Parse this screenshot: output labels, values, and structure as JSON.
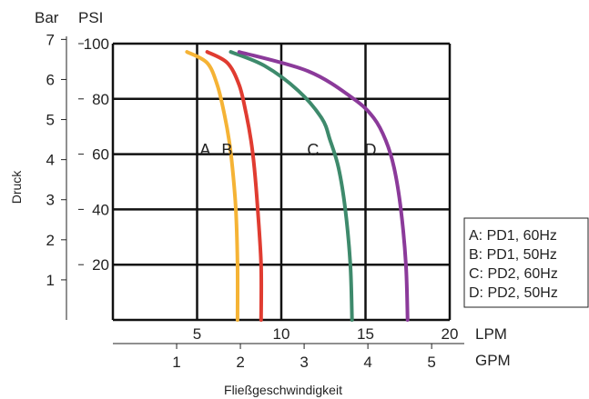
{
  "chart_data": {
    "type": "line",
    "title": "",
    "ylabel": "Druck",
    "xlabel": "Fließgeschwindigkeit",
    "units": {
      "bar": "Bar",
      "psi": "PSI",
      "lpm": "LPM",
      "gpm": "GPM"
    },
    "lpm_ticks": [
      "5",
      "10",
      "15",
      "20"
    ],
    "gpm_ticks": [
      "1",
      "2",
      "3",
      "4",
      "5"
    ],
    "psi_ticks": [
      "20",
      "40",
      "60",
      "80",
      "100"
    ],
    "bar_ticks": [
      "1",
      "2",
      "3",
      "4",
      "5",
      "6",
      "7"
    ],
    "xlim_lpm": [
      0,
      20
    ],
    "ylim_psi": [
      0,
      100
    ],
    "legend_position": "right",
    "series": [
      {
        "name": "A: PD1, 60Hz",
        "label": "A",
        "color": "#f5b335",
        "x": [
          7.4,
          7.4,
          7.3,
          7.1,
          6.9,
          6.6,
          6.2,
          5.6,
          4.4
        ],
        "y": [
          0,
          20,
          40,
          55,
          65,
          75,
          85,
          93,
          97
        ]
      },
      {
        "name": "B: PD1, 50Hz",
        "label": "B",
        "color": "#e03c31",
        "x": [
          8.8,
          8.8,
          8.6,
          8.4,
          8.2,
          7.9,
          7.5,
          6.8,
          5.6
        ],
        "y": [
          0,
          20,
          40,
          55,
          65,
          75,
          85,
          93,
          97
        ]
      },
      {
        "name": "C: PD2, 60Hz",
        "label": "C",
        "color": "#3e8a6c",
        "x": [
          14.2,
          14.1,
          13.8,
          13.4,
          12.9,
          12.4,
          11.0,
          9.0,
          7.0
        ],
        "y": [
          0,
          20,
          40,
          55,
          65,
          73,
          83,
          92,
          97
        ]
      },
      {
        "name": "D: PD2, 50Hz",
        "label": "D",
        "color": "#8b3a9a",
        "x": [
          17.5,
          17.4,
          17.1,
          16.7,
          16.2,
          15.5,
          14.3,
          11.6,
          7.5
        ],
        "y": [
          0,
          20,
          40,
          55,
          65,
          73,
          80,
          90,
          97
        ]
      }
    ]
  }
}
